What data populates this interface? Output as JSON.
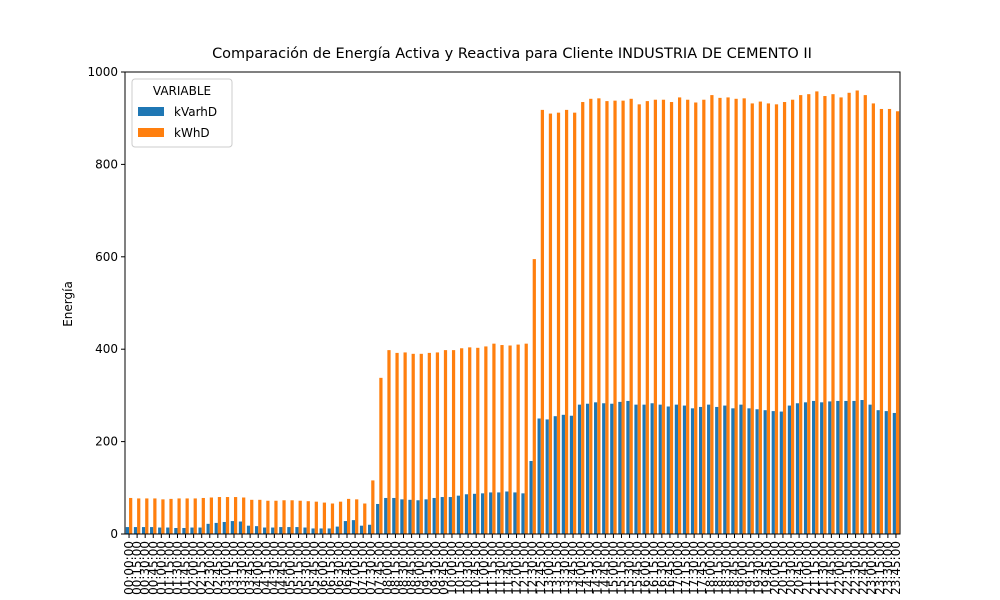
{
  "chart_data": {
    "type": "bar",
    "title": "Comparación de Energía Activa y Reactiva para Cliente INDUSTRIA DE CEMENTO II",
    "y_label": "Energía",
    "legend_title": "VARIABLE",
    "legend_position": "upper left",
    "categories": [
      "00:00:00",
      "00:15:00",
      "00:30:00",
      "00:45:00",
      "01:00:00",
      "01:15:00",
      "01:30:00",
      "01:45:00",
      "02:00:00",
      "02:15:00",
      "02:30:00",
      "02:45:00",
      "03:00:00",
      "03:15:00",
      "03:30:00",
      "03:45:00",
      "04:00:00",
      "04:15:00",
      "04:30:00",
      "04:45:00",
      "05:00:00",
      "05:15:00",
      "05:30:00",
      "05:45:00",
      "06:00:00",
      "06:15:00",
      "06:30:00",
      "06:45:00",
      "07:00:00",
      "07:15:00",
      "07:30:00",
      "07:45:00",
      "08:00:00",
      "08:15:00",
      "08:30:00",
      "08:45:00",
      "09:00:00",
      "09:15:00",
      "09:30:00",
      "09:45:00",
      "10:00:00",
      "10:15:00",
      "10:30:00",
      "10:45:00",
      "11:00:00",
      "11:15:00",
      "11:30:00",
      "11:45:00",
      "12:00:00",
      "12:15:00",
      "12:30:00",
      "12:45:00",
      "13:00:00",
      "13:15:00",
      "13:30:00",
      "13:45:00",
      "14:00:00",
      "14:15:00",
      "14:30:00",
      "14:45:00",
      "15:00:00",
      "15:15:00",
      "15:30:00",
      "15:45:00",
      "16:00:00",
      "16:15:00",
      "16:30:00",
      "16:45:00",
      "17:00:00",
      "17:15:00",
      "17:30:00",
      "17:45:00",
      "18:00:00",
      "18:15:00",
      "18:30:00",
      "18:45:00",
      "19:00:00",
      "19:15:00",
      "19:30:00",
      "19:45:00",
      "20:00:00",
      "20:15:00",
      "20:30:00",
      "20:45:00",
      "21:00:00",
      "21:15:00",
      "21:30:00",
      "21:45:00",
      "22:00:00",
      "22:15:00",
      "22:30:00",
      "22:45:00",
      "23:00:00",
      "23:15:00",
      "23:30:00",
      "23:45:00"
    ],
    "series": [
      {
        "name": "kVarhD",
        "color": "#1f77b4",
        "values": [
          15,
          15,
          15,
          15,
          14,
          14,
          13,
          13,
          14,
          14,
          22,
          24,
          26,
          28,
          27,
          18,
          17,
          14,
          14,
          15,
          15,
          15,
          14,
          12,
          12,
          12,
          16,
          28,
          30,
          18,
          20,
          65,
          78,
          78,
          75,
          74,
          73,
          75,
          78,
          80,
          80,
          83,
          86,
          87,
          88,
          90,
          90,
          92,
          90,
          88,
          158,
          250,
          248,
          255,
          258,
          256,
          280,
          282,
          285,
          283,
          282,
          286,
          288,
          280,
          280,
          283,
          280,
          276,
          280,
          278,
          272,
          275,
          280,
          275,
          278,
          272,
          280,
          272,
          270,
          268,
          266,
          265,
          278,
          283,
          285,
          288,
          285,
          287,
          288,
          288,
          288,
          290,
          280,
          268,
          266,
          262
        ]
      },
      {
        "name": "kWhD",
        "color": "#ff7f0e",
        "values": [
          78,
          77,
          77,
          77,
          75,
          76,
          77,
          77,
          77,
          78,
          79,
          80,
          80,
          80,
          79,
          74,
          74,
          72,
          72,
          73,
          73,
          72,
          71,
          70,
          68,
          66,
          70,
          76,
          75,
          66,
          116,
          338,
          398,
          392,
          393,
          390,
          390,
          392,
          393,
          398,
          398,
          402,
          404,
          403,
          406,
          412,
          409,
          408,
          410,
          412,
          595,
          918,
          910,
          912,
          918,
          912,
          935,
          942,
          943,
          937,
          938,
          938,
          942,
          930,
          937,
          940,
          940,
          935,
          945,
          940,
          934,
          940,
          950,
          944,
          945,
          942,
          943,
          932,
          936,
          932,
          930,
          935,
          940,
          950,
          952,
          958,
          948,
          952,
          945,
          955,
          960,
          950,
          932,
          920,
          920,
          915
        ]
      }
    ],
    "ylim": [
      0,
      1000
    ],
    "yticks": [
      0,
      200,
      400,
      600,
      800,
      1000
    ]
  }
}
